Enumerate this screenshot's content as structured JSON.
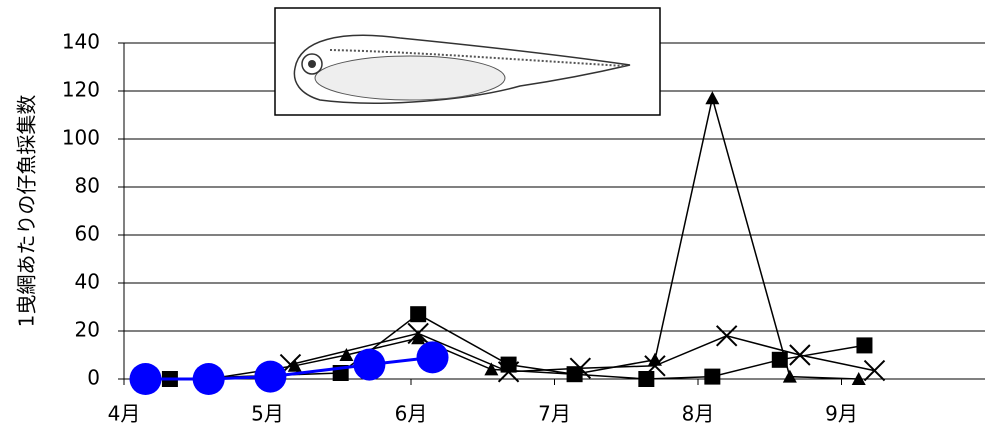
{
  "chart_data": {
    "type": "line",
    "ylabel": "1曳網あたりの仔魚採集数",
    "xlim": [
      4,
      10
    ],
    "xticks": [
      {
        "value": 4,
        "label": "4月"
      },
      {
        "value": 5,
        "label": "5月"
      },
      {
        "value": 6,
        "label": "6月"
      },
      {
        "value": 7,
        "label": "7月"
      },
      {
        "value": 8,
        "label": "8月"
      },
      {
        "value": 9,
        "label": "9月"
      }
    ],
    "ylim": [
      0,
      140
    ],
    "yticks": [
      0,
      20,
      40,
      60,
      80,
      100,
      120,
      140
    ],
    "grid": true,
    "series": [
      {
        "marker": "square",
        "color": "#000000",
        "x": [
          4.32,
          5.51,
          6.05,
          6.68,
          7.14,
          7.64,
          8.1,
          8.57,
          9.16
        ],
        "values": [
          0,
          2.5,
          27,
          6,
          2,
          0,
          1,
          8,
          14
        ]
      },
      {
        "marker": "triangle",
        "color": "#000000",
        "x": [
          4.59,
          5.19,
          5.55,
          6.05,
          6.56,
          7.14,
          7.7,
          8.1,
          8.64,
          9.12
        ],
        "values": [
          0,
          5.5,
          10,
          17,
          4,
          2,
          8,
          117,
          1,
          0
        ]
      },
      {
        "marker": "cross",
        "color": "#000000",
        "x": [
          5.16,
          6.05,
          6.68,
          7.18,
          7.7,
          8.2,
          8.71,
          9.23
        ],
        "values": [
          6,
          19,
          3,
          4.5,
          5.5,
          18,
          10,
          3.5
        ]
      },
      {
        "marker": "circle",
        "color": "#0000ff",
        "x": [
          4.15,
          4.59,
          5.02,
          5.71,
          6.15
        ],
        "values": [
          0,
          0,
          1,
          6,
          9
        ]
      }
    ]
  }
}
